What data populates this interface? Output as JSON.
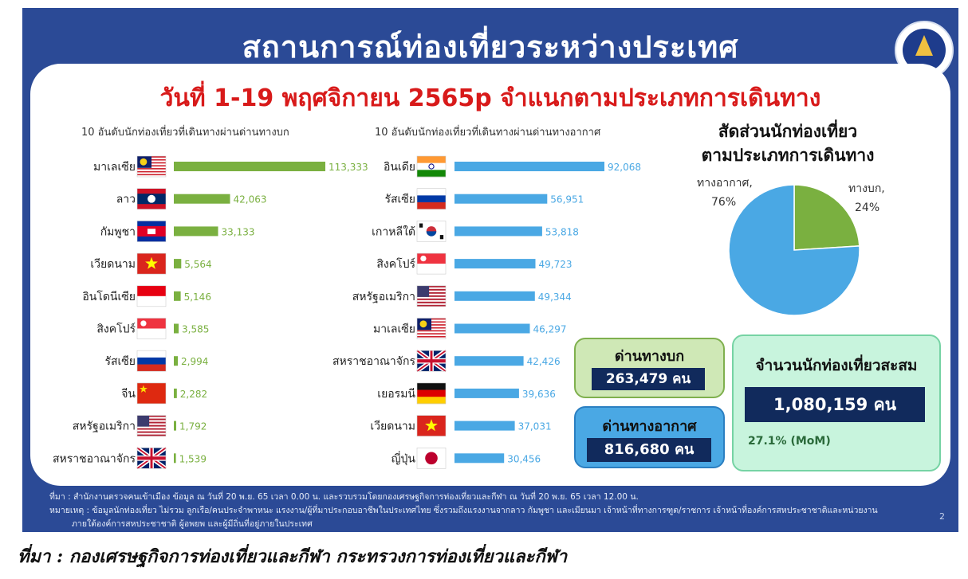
{
  "header": {
    "title": "สถานการณ์ท่องเที่ยวระหว่างประเทศ",
    "subtitle": "วันที่ 1-19 พฤศจิกายน 2565p จำแนกตามประเภทการเดินทาง"
  },
  "chart_data": [
    {
      "type": "bar",
      "orientation": "horizontal",
      "title": "10 อันดับนักท่องเที่ยวที่เดินทางผ่านด่านทางบก",
      "categories": [
        "มาเลเซีย",
        "ลาว",
        "กัมพูชา",
        "เวียดนาม",
        "อินโดนีเซีย",
        "สิงคโปร์",
        "รัสเซีย",
        "จีน",
        "สหรัฐอเมริกา",
        "สหราชอาณาจักร"
      ],
      "values": [
        113333,
        42063,
        33133,
        5564,
        5146,
        3585,
        2994,
        2282,
        1792,
        1539
      ],
      "value_labels": [
        "113,333",
        "42,063",
        "33,133",
        "5,564",
        "5,146",
        "3,585",
        "2,994",
        "2,282",
        "1,792",
        "1,539"
      ],
      "color": "#7ab040",
      "xlim": [
        0,
        113333
      ]
    },
    {
      "type": "bar",
      "orientation": "horizontal",
      "title": "10 อันดับนักท่องเที่ยวที่เดินทางผ่านด่านทางอากาศ",
      "categories": [
        "อินเดีย",
        "รัสเซีย",
        "เกาหลีใต้",
        "สิงคโปร์",
        "สหรัฐอเมริกา",
        "มาเลเซีย",
        "สหราชอาณาจักร",
        "เยอรมนี",
        "เวียดนาม",
        "ญี่ปุ่น"
      ],
      "values": [
        92068,
        56951,
        53818,
        49723,
        49344,
        46297,
        42426,
        39636,
        37031,
        30456
      ],
      "value_labels": [
        "92,068",
        "56,951",
        "53,818",
        "49,723",
        "49,344",
        "46,297",
        "42,426",
        "39,636",
        "37,031",
        "30,456"
      ],
      "color": "#4aa8e4",
      "xlim": [
        0,
        92068
      ]
    },
    {
      "type": "pie",
      "title": "สัดส่วนนักท่องเที่ยว",
      "title_line2": "ตามประเภทการเดินทาง",
      "labels": [
        "ทางอากาศ,",
        "ทางบก,"
      ],
      "values": [
        76,
        24
      ],
      "value_labels": [
        "76%",
        "24%"
      ],
      "colors": [
        "#4aa8e4",
        "#7ab040"
      ]
    }
  ],
  "flags": {
    "land": [
      "malaysia",
      "laos",
      "cambodia",
      "vietnam",
      "indonesia",
      "singapore",
      "russia",
      "china",
      "usa",
      "uk"
    ],
    "air": [
      "india",
      "russia",
      "korea",
      "singapore",
      "usa",
      "malaysia",
      "uk",
      "germany",
      "vietnam",
      "japan"
    ]
  },
  "summary": {
    "land_label": "ด่านทางบก",
    "land_value": "263,479 คน",
    "air_label": "ด่านทางอากาศ",
    "air_value": "816,680 คน",
    "total_label": "จำนวนนักท่องเที่ยวสะสม",
    "total_value": "1,080,159 คน",
    "growth": "27.1% (MoM)"
  },
  "footnotes": {
    "line1": "ที่มา : สำนักงานตรวจคนเข้าเมือง ข้อมูล ณ วันที่ 20 พ.ย. 65 เวลา 0.00 น. และรวบรวมโดยกองเศรษฐกิจการท่องเที่ยวและกีฬา ณ วันที่ 20 พ.ย. 65 เวลา 12.00 น.",
    "line2": "หมายเหตุ : ข้อมูลนักท่องเที่ยว ไม่รวม ลูกเรือ/คนประจำพาหนะ แรงงาน/ผู้ที่มาประกอบอาชีพในประเทศไทย ซึ่งรวมถึงแรงงานจากลาว กัมพูชา และเมียนมา เจ้าหน้าที่ทางการฑูต/ราชการ เจ้าหน้าที่องค์การสหประชาชาติและหน่วยงาน",
    "line3": "ภายใต้องค์การสหประชาชาติ ผู้อพยพ และผู้มีถิ่นที่อยู่ภายในประเทศ",
    "page": "2"
  },
  "source_caption": "ที่มา : กองเศรษฐกิจการท่องเที่ยวและกีฬา กระทรวงการท่องเที่ยวและกีฬา",
  "colors": {
    "slide_bg": "#2b4a96",
    "subtitle": "#d81a1a",
    "land_bar": "#7ab040",
    "air_bar": "#4aa8e4",
    "box_navy": "#112a5c"
  }
}
